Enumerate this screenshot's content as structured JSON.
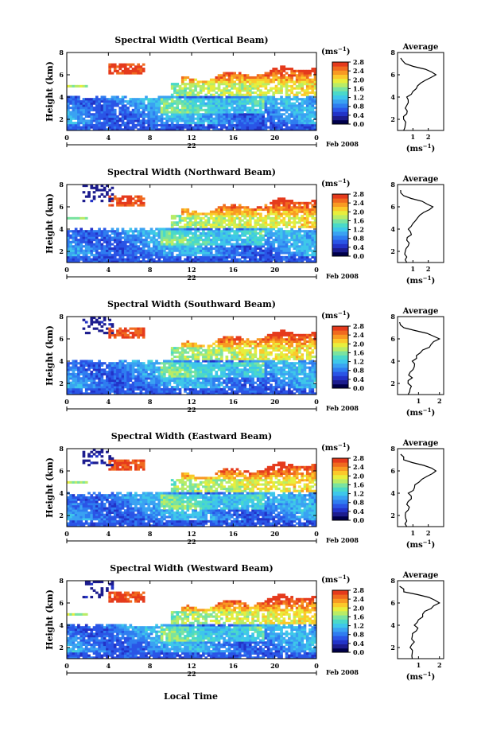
{
  "figure": {
    "x_axis_label": "Local Time",
    "date_label": "Feb 2008",
    "day_label": "22",
    "height_axis_label": "Height (km)",
    "unit_label": "(ms",
    "unit_exp": "−1",
    "avg_title": "Average",
    "colorbar_ticks": [
      "0.0",
      "0.4",
      "0.8",
      "1.2",
      "1.6",
      "2.0",
      "2.4",
      "2.8"
    ]
  },
  "colorbar": {
    "colors": [
      "#00004a",
      "#1c1c8e",
      "#2233c8",
      "#2a55e6",
      "#2f7df0",
      "#3aa2f2",
      "#3ec7ea",
      "#4ad9c9",
      "#7ae3a0",
      "#b9ec66",
      "#e8ee3c",
      "#fbc92a",
      "#f89a22",
      "#f06a1f",
      "#e53a1c"
    ]
  },
  "chart_data": [
    {
      "type": "heatmap",
      "title": "Spectral Width (Vertical Beam)",
      "xlabel": "",
      "ylabel": "Height (km)",
      "x_ticks": [
        "0",
        "4",
        "8",
        "12",
        "16",
        "20",
        "0"
      ],
      "y_ticks": [
        "2",
        "4",
        "6",
        "8"
      ],
      "xlim": [
        0,
        24
      ],
      "ylim": [
        1,
        8
      ],
      "colorbar_ticks": [
        "0.0",
        "0.4",
        "0.8",
        "1.2",
        "1.6",
        "2.0",
        "2.4",
        "2.8"
      ],
      "average_profile": {
        "x_ticks": [
          "1",
          "2"
        ],
        "xlim": [
          0,
          3
        ],
        "height": [
          1.0,
          1.5,
          2.0,
          2.5,
          3.0,
          3.5,
          4.0,
          4.5,
          5.0,
          5.5,
          6.0,
          6.5,
          7.0,
          7.5
        ],
        "width": [
          0.4,
          0.5,
          0.4,
          0.6,
          0.5,
          0.7,
          0.6,
          1.0,
          1.3,
          1.8,
          2.5,
          1.8,
          0.5,
          0.2
        ]
      }
    },
    {
      "type": "heatmap",
      "title": "Spectral Width (Northward Beam)",
      "xlabel": "",
      "ylabel": "Height (km)",
      "x_ticks": [
        "0",
        "4",
        "8",
        "12",
        "16",
        "20",
        "0"
      ],
      "y_ticks": [
        "2",
        "4",
        "6",
        "8"
      ],
      "xlim": [
        0,
        24
      ],
      "ylim": [
        1,
        8
      ],
      "colorbar_ticks": [
        "0.0",
        "0.4",
        "0.8",
        "1.2",
        "1.6",
        "2.0",
        "2.4",
        "2.8"
      ],
      "average_profile": {
        "x_ticks": [
          "1",
          "2"
        ],
        "xlim": [
          0,
          3
        ],
        "height": [
          1.0,
          1.5,
          2.0,
          2.5,
          3.0,
          3.5,
          4.0,
          4.5,
          5.0,
          5.5,
          6.0,
          6.5,
          7.0,
          7.5
        ],
        "width": [
          0.6,
          0.6,
          0.5,
          0.7,
          0.6,
          0.9,
          0.7,
          1.0,
          1.3,
          1.7,
          2.3,
          1.6,
          0.4,
          0.2
        ]
      }
    },
    {
      "type": "heatmap",
      "title": "Spectral Width (Southward Beam)",
      "xlabel": "",
      "ylabel": "Height (km)",
      "x_ticks": [
        "0",
        "4",
        "8",
        "12",
        "16",
        "20",
        "0"
      ],
      "y_ticks": [
        "2",
        "4",
        "6",
        "8"
      ],
      "xlim": [
        0,
        24
      ],
      "ylim": [
        1,
        8
      ],
      "colorbar_ticks": [
        "0.0",
        "0.4",
        "0.8",
        "1.2",
        "1.6",
        "2.0",
        "2.4",
        "2.8"
      ],
      "average_profile": {
        "x_ticks": [
          "1",
          "2"
        ],
        "xlim": [
          0,
          2.2
        ],
        "height": [
          1.0,
          1.5,
          2.0,
          2.5,
          3.0,
          3.5,
          4.0,
          4.5,
          5.0,
          5.5,
          6.0,
          6.5,
          7.0,
          7.5
        ],
        "width": [
          0.5,
          0.6,
          0.5,
          0.7,
          0.6,
          0.8,
          0.7,
          0.9,
          1.2,
          1.6,
          2.0,
          1.4,
          0.3,
          0.1
        ]
      }
    },
    {
      "type": "heatmap",
      "title": "Spectral Width (Eastward Beam)",
      "xlabel": "",
      "ylabel": "Height (km)",
      "x_ticks": [
        "0",
        "4",
        "8",
        "12",
        "16",
        "20",
        "0"
      ],
      "y_ticks": [
        "2",
        "4",
        "6",
        "8"
      ],
      "xlim": [
        0,
        24
      ],
      "ylim": [
        1,
        8
      ],
      "colorbar_ticks": [
        "0.0",
        "0.4",
        "0.8",
        "1.2",
        "1.6",
        "2.0",
        "2.4",
        "2.8"
      ],
      "average_profile": {
        "x_ticks": [
          "1",
          "2"
        ],
        "xlim": [
          0,
          3
        ],
        "height": [
          1.0,
          1.5,
          2.0,
          2.5,
          3.0,
          3.5,
          4.0,
          4.5,
          5.0,
          5.5,
          6.0,
          6.5,
          7.0,
          7.5
        ],
        "width": [
          0.6,
          0.6,
          0.5,
          0.7,
          0.6,
          0.9,
          0.7,
          1.1,
          1.4,
          1.9,
          2.5,
          1.7,
          0.4,
          0.2
        ]
      }
    },
    {
      "type": "heatmap",
      "title": "Spectral Width (Westward Beam)",
      "xlabel": "Local Time",
      "ylabel": "Height (km)",
      "x_ticks": [
        "0",
        "4",
        "8",
        "12",
        "16",
        "20",
        "0"
      ],
      "y_ticks": [
        "2",
        "4",
        "6",
        "8"
      ],
      "xlim": [
        0,
        24
      ],
      "ylim": [
        1,
        8
      ],
      "colorbar_ticks": [
        "0.0",
        "0.4",
        "0.8",
        "1.2",
        "1.6",
        "2.0",
        "2.4",
        "2.8"
      ],
      "average_profile": {
        "x_ticks": [
          "1",
          "2"
        ],
        "xlim": [
          0,
          2.2
        ],
        "height": [
          1.0,
          1.5,
          2.0,
          2.5,
          3.0,
          3.5,
          4.0,
          4.5,
          5.0,
          5.5,
          6.0,
          6.5,
          7.0,
          7.5
        ],
        "width": [
          0.7,
          0.7,
          0.6,
          0.8,
          0.7,
          0.9,
          0.8,
          1.0,
          1.2,
          1.6,
          2.0,
          1.5,
          0.3,
          0.1
        ]
      }
    }
  ]
}
